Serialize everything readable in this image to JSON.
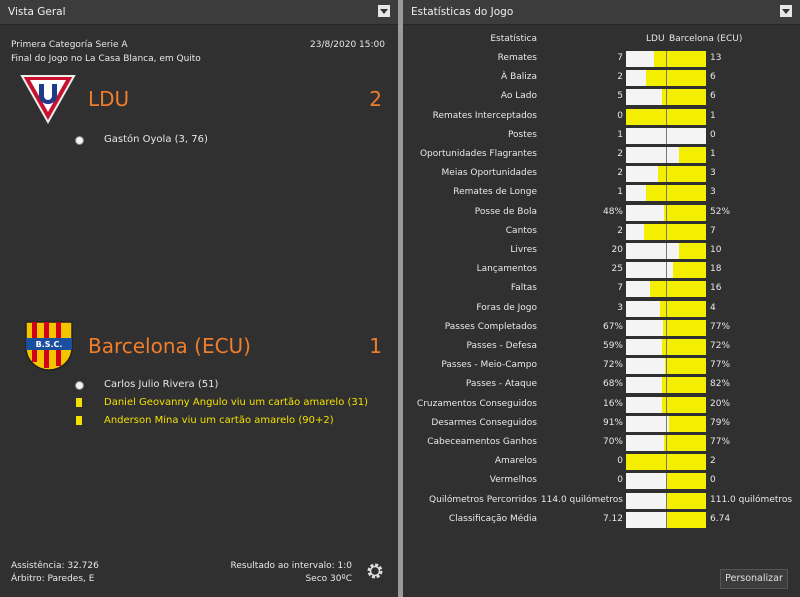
{
  "overview": {
    "header": "Vista Geral",
    "competition": "Primera Categoría Serie A",
    "date": "23/8/2020 15:00",
    "venue": "Final do Jogo no La Casa Blanca, em Quito",
    "home": {
      "name": "LDU",
      "score": "2",
      "goals": [
        "Gastón Oyola (3, 76)"
      ],
      "cards": []
    },
    "away": {
      "name": "Barcelona (ECU)",
      "score": "1",
      "goals": [
        "Carlos Julio Rivera (51)"
      ],
      "cards": [
        "Daniel Geovanny Angulo viu um cartão amarelo (31)",
        "Anderson Mina viu um cartão amarelo (90+2)"
      ]
    },
    "attendance": "Assistência: 32.726",
    "referee": "Árbitro: Paredes, E",
    "half_time": "Resultado ao intervalo: 1:0",
    "weather": "Seco 30ºC"
  },
  "stats": {
    "header": "Estatísticas do Jogo",
    "column": "Estatística",
    "home_team": "LDU",
    "away_team": "Barcelona (ECU)",
    "button": "Personalizar",
    "rows": [
      [
        "Remates",
        "7",
        "13"
      ],
      [
        "À Baliza",
        "2",
        "6"
      ],
      [
        "Ao Lado",
        "5",
        "6"
      ],
      [
        "Remates Interceptados",
        "0",
        "1"
      ],
      [
        "Postes",
        "1",
        "0"
      ],
      [
        "Oportunidades Flagrantes",
        "2",
        "1"
      ],
      [
        "Meias Oportunidades",
        "2",
        "3"
      ],
      [
        "Remates de Longe",
        "1",
        "3"
      ],
      [
        "Posse de Bola",
        "48%",
        "52%"
      ],
      [
        "Cantos",
        "2",
        "7"
      ],
      [
        "Livres",
        "20",
        "10"
      ],
      [
        "Lançamentos",
        "25",
        "18"
      ],
      [
        "Faltas",
        "7",
        "16"
      ],
      [
        "Foras de Jogo",
        "3",
        "4"
      ],
      [
        "Passes Completados",
        "67%",
        "77%"
      ],
      [
        "Passes - Defesa",
        "59%",
        "72%"
      ],
      [
        "Passes - Meio-Campo",
        "72%",
        "77%"
      ],
      [
        "Passes - Ataque",
        "68%",
        "82%"
      ],
      [
        "Cruzamentos Conseguidos",
        "16%",
        "20%"
      ],
      [
        "Desarmes Conseguidos",
        "91%",
        "79%"
      ],
      [
        "Cabeceamentos Ganhos",
        "70%",
        "77%"
      ],
      [
        "Amarelos",
        "0",
        "2"
      ],
      [
        "Vermelhos",
        "0",
        "0"
      ],
      [
        "Quilómetros Percorridos",
        "114.0 quilómetros",
        "111.0 quilómetros"
      ],
      [
        "Classificação Média",
        "7.12",
        "6.74"
      ]
    ]
  }
}
